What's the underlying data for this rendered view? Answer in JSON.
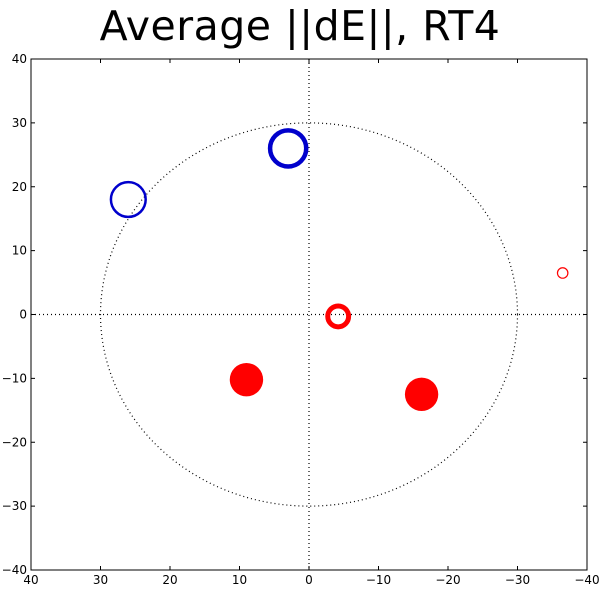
{
  "chart_data": {
    "type": "scatter",
    "title": "Average ||dE||, RT4",
    "xlabel": "",
    "ylabel": "",
    "xlim": [
      40,
      -40
    ],
    "ylim": [
      -40,
      40
    ],
    "xticks": [
      40,
      30,
      20,
      10,
      0,
      -10,
      -20,
      -30,
      -40
    ],
    "yticks": [
      40,
      30,
      20,
      10,
      0,
      -10,
      -20,
      -30,
      -40
    ],
    "tick_labels": {
      "x": [
        "40",
        "30",
        "20",
        "10",
        "0",
        "−10",
        "−20",
        "−30",
        "−40"
      ],
      "y": [
        "40",
        "30",
        "20",
        "10",
        "0",
        "−10",
        "−20",
        "−30",
        "−40"
      ]
    },
    "grid": false,
    "reference_circle_radius": 30,
    "reference_lines": {
      "x": 0,
      "y": 0
    },
    "points": [
      {
        "x": 26,
        "y": 18,
        "color": "#0000cc",
        "style": "hollow",
        "size": 2.5
      },
      {
        "x": 3,
        "y": 26,
        "color": "#0000cc",
        "style": "hollow",
        "size": 2.6
      },
      {
        "x": -4.2,
        "y": -0.3,
        "color": "#ff0000",
        "style": "hollow",
        "size": 1.5
      },
      {
        "x": 9,
        "y": -10.2,
        "color": "#ff0000",
        "style": "filled",
        "size": 2.4
      },
      {
        "x": -16.2,
        "y": -12.5,
        "color": "#ff0000",
        "style": "filled",
        "size": 2.4
      },
      {
        "x": -36.5,
        "y": 6.5,
        "color": "#ff0000",
        "style": "hollow",
        "size": 0.75
      }
    ]
  }
}
